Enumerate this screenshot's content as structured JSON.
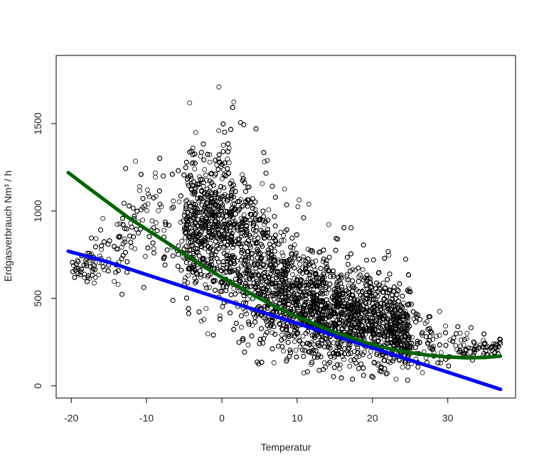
{
  "chart_data": {
    "type": "scatter",
    "title": "",
    "xlabel": "Temperatur",
    "ylabel": "Erdgasverbrauch Nm³ / h",
    "xlim": [
      -22,
      39
    ],
    "ylim": [
      -70,
      1890
    ],
    "x_ticks": [
      -20,
      -10,
      0,
      10,
      20,
      30
    ],
    "x_tick_labels": [
      "-20",
      "-10",
      "0",
      "10",
      "20",
      "30"
    ],
    "y_ticks": [
      0,
      500,
      1000,
      1500
    ],
    "y_tick_labels": [
      "0",
      "500",
      "1000",
      "1500"
    ],
    "grid": false,
    "legend": "none",
    "point_marker": "open-circle",
    "point_color": "#000000",
    "scatter_envelope": [
      {
        "x": -20,
        "y_low": 560,
        "y_high": 800
      },
      {
        "x": -15,
        "y_low": 520,
        "y_high": 1000
      },
      {
        "x": -10,
        "y_low": 470,
        "y_high": 1600
      },
      {
        "x": -5,
        "y_low": 380,
        "y_high": 1600
      },
      {
        "x": 0,
        "y_low": 220,
        "y_high": 1850
      },
      {
        "x": 5,
        "y_low": 100,
        "y_high": 1450
      },
      {
        "x": 10,
        "y_low": 30,
        "y_high": 1100
      },
      {
        "x": 15,
        "y_low": 20,
        "y_high": 950
      },
      {
        "x": 20,
        "y_low": 20,
        "y_high": 860
      },
      {
        "x": 25,
        "y_low": 20,
        "y_high": 720
      },
      {
        "x": 30,
        "y_low": 60,
        "y_high": 420
      },
      {
        "x": 35,
        "y_low": 150,
        "y_high": 320
      }
    ],
    "series": [
      {
        "type": "line",
        "color": "#0000ff",
        "x": [
          -20.4,
          -15,
          -10,
          -5,
          0,
          5,
          10,
          15,
          20,
          25,
          30,
          37
        ],
        "y": [
          770,
          707,
          636,
          566,
          496,
          426,
          357,
          287,
          217,
          147,
          78,
          -20
        ]
      },
      {
        "type": "line",
        "color": "#006400",
        "x": [
          -20.4,
          -17.5,
          -15,
          -12.5,
          -10,
          -7.5,
          -5,
          -2.5,
          0,
          2.5,
          5,
          7.5,
          10,
          12.5,
          15,
          17.5,
          20,
          22.5,
          25,
          27.5,
          30,
          32.5,
          35,
          37
        ],
        "y": [
          1220,
          1125,
          1045,
          965,
          895,
          825,
          755,
          685,
          620,
          560,
          500,
          445,
          395,
          350,
          305,
          270,
          235,
          210,
          190,
          175,
          165,
          160,
          162,
          170
        ]
      }
    ]
  }
}
